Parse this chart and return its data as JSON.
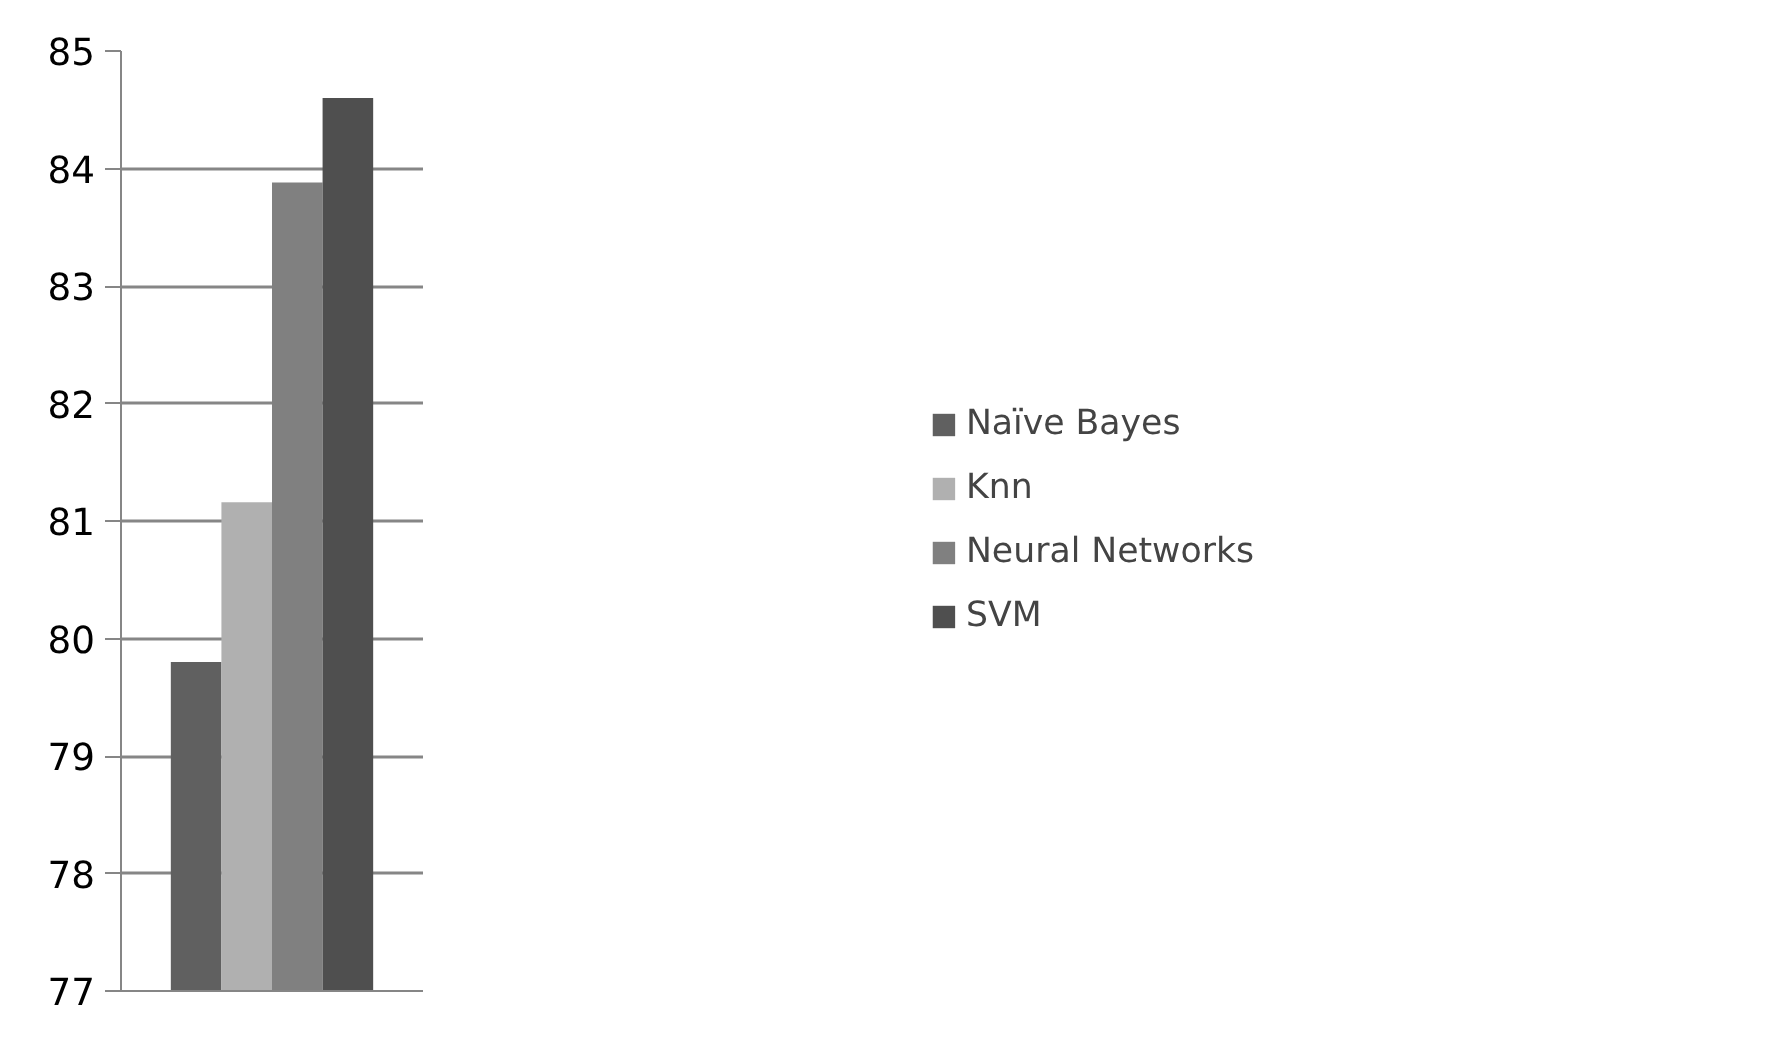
{
  "chart_data": {
    "type": "bar",
    "categories": [
      null
    ],
    "series": [
      {
        "name": "Naïve Bayes",
        "color": "#606060",
        "values": [
          79.8
        ]
      },
      {
        "name": "Knn",
        "color": "#b0b0b0",
        "values": [
          81.16
        ]
      },
      {
        "name": "Neural Networks",
        "color": "#808080",
        "values": [
          83.88
        ]
      },
      {
        "name": "SVM",
        "color": "#4f4f4f",
        "values": [
          84.6
        ]
      }
    ],
    "ylim": [
      77,
      85
    ],
    "yticks": [
      77,
      78,
      79,
      80,
      81,
      82,
      83,
      84,
      85
    ],
    "grid": "y",
    "legend": "right"
  }
}
